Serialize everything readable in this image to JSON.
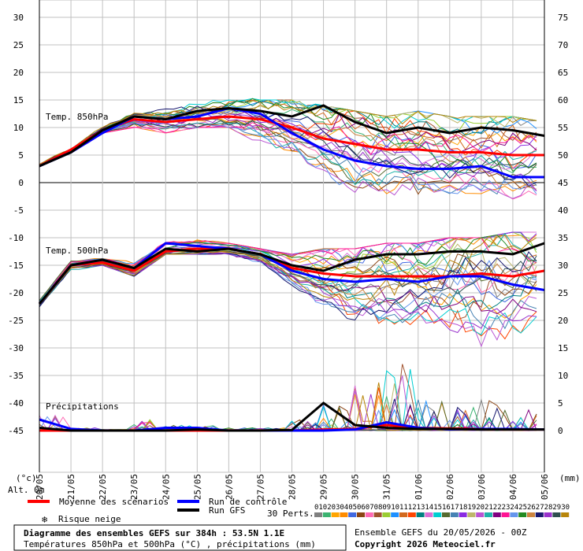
{
  "chart_data": {
    "type": "line",
    "panel_labels": {
      "t850": "Temp. 850hPa",
      "t500": "Temp. 500hPa",
      "precip": "Précipitations"
    },
    "left_axis_ticks": [
      "30",
      "25",
      "20",
      "15",
      "10",
      "5",
      "0",
      "-5",
      "-10",
      "-15",
      "-20",
      "-25",
      "-30",
      "-35",
      "-40",
      "-45"
    ],
    "right_axis_ticks": [
      "75",
      "70",
      "65",
      "60",
      "55",
      "50",
      "45",
      "40",
      "35",
      "30",
      "25",
      "20",
      "15",
      "10",
      "5",
      "0"
    ],
    "left_unit": "(°c)",
    "right_unit": "(mm)",
    "alt_label": "Alt. 0m",
    "x_dates": [
      "20/05",
      "21/05",
      "22/05",
      "23/05",
      "24/05",
      "25/05",
      "26/05",
      "27/05",
      "28/05",
      "29/05",
      "30/05",
      "31/05",
      "01/06",
      "02/06",
      "03/06",
      "04/06",
      "05/06"
    ],
    "legend": {
      "mean": "Moyenne des scénarios",
      "control": "Run de contrôle",
      "gfs": "Run GFS",
      "snow": "Risque neige",
      "perts_label": "30 Perts.",
      "pert_numbers": [
        "01",
        "02",
        "03",
        "04",
        "05",
        "06",
        "07",
        "08",
        "09",
        "10",
        "11",
        "12",
        "13",
        "14",
        "15",
        "16",
        "17",
        "18",
        "19",
        "20",
        "21",
        "22",
        "23",
        "24",
        "25",
        "26",
        "27",
        "28",
        "29",
        "30"
      ]
    },
    "colors": {
      "mean": "#ff0000",
      "control": "#0000ff",
      "gfs": "#000000",
      "grid": "#c0c0c0",
      "zero_line": "#808080"
    },
    "pert_colors": [
      "#808080",
      "#3cb371",
      "#ffa500",
      "#ff8c00",
      "#4169e1",
      "#8b4513",
      "#ff69b4",
      "#a0522d",
      "#9acd32",
      "#1e90ff",
      "#d2691e",
      "#ff4500",
      "#008080",
      "#da70d6",
      "#00ced1",
      "#556b2f",
      "#4682b4",
      "#8a2be2",
      "#bdb76b",
      "#ba55d3",
      "#20b2aa",
      "#800080",
      "#ff1493",
      "#6495ed",
      "#228b22",
      "#cd853f",
      "#191970",
      "#9932cc",
      "#2f4f4f",
      "#b8860b"
    ],
    "series": [
      {
        "name": "Moyenne des scénarios",
        "t850": [
          3,
          6,
          9.5,
          11.5,
          11,
          11.5,
          12,
          11.5,
          10,
          8,
          7,
          6,
          6,
          5.5,
          5.5,
          5,
          5
        ],
        "t500": [
          -22,
          -15,
          -14.5,
          -16,
          -12.5,
          -12,
          -12,
          -13,
          -15.5,
          -16.5,
          -17,
          -17,
          -17,
          -17,
          -16.5,
          -17,
          -16
        ],
        "precip": [
          0,
          0,
          0,
          0,
          0,
          0,
          0,
          0,
          0,
          0.2,
          0.3,
          1,
          0.5,
          0.4,
          0.3,
          0.2,
          0.2
        ]
      },
      {
        "name": "Run de contrôle",
        "t850": [
          3,
          5.5,
          9,
          12,
          11.5,
          12,
          13.5,
          12.5,
          9,
          6,
          4,
          3,
          2.5,
          2.5,
          3,
          1,
          1
        ],
        "t500": [
          -22,
          -15,
          -14,
          -15.5,
          -11,
          -11.5,
          -12,
          -13,
          -16,
          -17.5,
          -18,
          -17.5,
          -18,
          -17,
          -17,
          -18.5,
          -19.5
        ],
        "precip": [
          2,
          0.3,
          0,
          0,
          0.5,
          0.5,
          0,
          0,
          0,
          0,
          0.2,
          1.5,
          0.5,
          0.2,
          0.3,
          0.3,
          0.2
        ]
      },
      {
        "name": "Run GFS",
        "t850": [
          3,
          5.5,
          9.5,
          12,
          11.5,
          13,
          13.5,
          13,
          12,
          14,
          11,
          9,
          10,
          9,
          10,
          9.5,
          8.5
        ],
        "t500": [
          -22,
          -15,
          -14,
          -15.5,
          -12,
          -12.5,
          -12,
          -13,
          -15,
          -16,
          -14,
          -13,
          -13,
          -12.5,
          -12.5,
          -13,
          -11
        ],
        "precip": [
          0.5,
          0,
          0,
          0,
          0,
          0.2,
          0,
          0,
          0.1,
          5,
          1,
          0.5,
          0.3,
          0.3,
          0.2,
          0.2,
          0.2
        ]
      }
    ],
    "t850_ensemble_range": {
      "min": [
        3,
        5,
        9,
        10,
        9,
        10,
        10,
        7,
        5,
        2,
        -4,
        -3,
        -3,
        -2,
        -2,
        -3,
        -3
      ],
      "max": [
        4,
        6,
        10.5,
        13,
        14,
        15.5,
        16,
        15,
        15,
        14,
        13,
        12,
        13,
        12,
        12,
        12,
        11
      ]
    },
    "t500_ensemble_range": {
      "min": [
        -23,
        -16,
        -15,
        -17,
        -13,
        -13,
        -13,
        -15,
        -19,
        -23,
        -27,
        -28,
        -26,
        -28,
        -34,
        -30,
        -25
      ],
      "max": [
        -21,
        -14,
        -13.5,
        -14,
        -10,
        -10,
        -11,
        -12,
        -13,
        -12,
        -12,
        -11,
        -11,
        -10,
        -10,
        -9,
        -9
      ]
    },
    "precip_max": [
      3,
      0.5,
      0,
      2,
      1,
      1,
      0.5,
      0.5,
      2,
      5,
      9,
      13,
      6,
      5,
      6,
      4,
      3
    ],
    "ylim_left": [
      -45,
      30
    ],
    "ylim_right": [
      0,
      75
    ],
    "grid": true,
    "legend_position": "bottom"
  },
  "footer": {
    "title": "Diagramme des ensembles GEFS sur 384h : 53.5N 1.1E",
    "subtitle": "Températures 850hPa et 500hPa (°C) , précipitations (mm)",
    "run": "Ensemble GEFS du 20/05/2026 - 00Z",
    "copyright": "Copyright 2026 Meteociel.fr"
  }
}
